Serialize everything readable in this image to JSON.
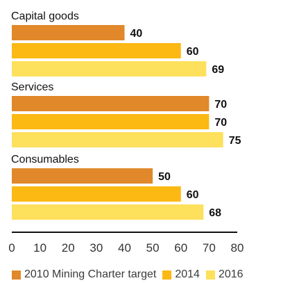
{
  "chart_data": {
    "type": "bar",
    "orientation": "horizontal",
    "categories": [
      "Capital goods",
      "Services",
      "Consumables"
    ],
    "series": [
      {
        "name": "2010 Mining Charter target",
        "values": [
          40,
          70,
          50
        ],
        "color": "#E0882A"
      },
      {
        "name": "2014",
        "values": [
          60,
          70,
          60
        ],
        "color": "#FCB813"
      },
      {
        "name": "2016",
        "values": [
          69,
          75,
          68
        ],
        "color": "#FDE05C"
      }
    ],
    "xlim": [
      0,
      80
    ],
    "xticks": [
      "0",
      "10",
      "20",
      "30",
      "40",
      "50",
      "60",
      "70",
      "80"
    ],
    "grid": false,
    "data_labels": true,
    "legend_position": "bottom"
  }
}
